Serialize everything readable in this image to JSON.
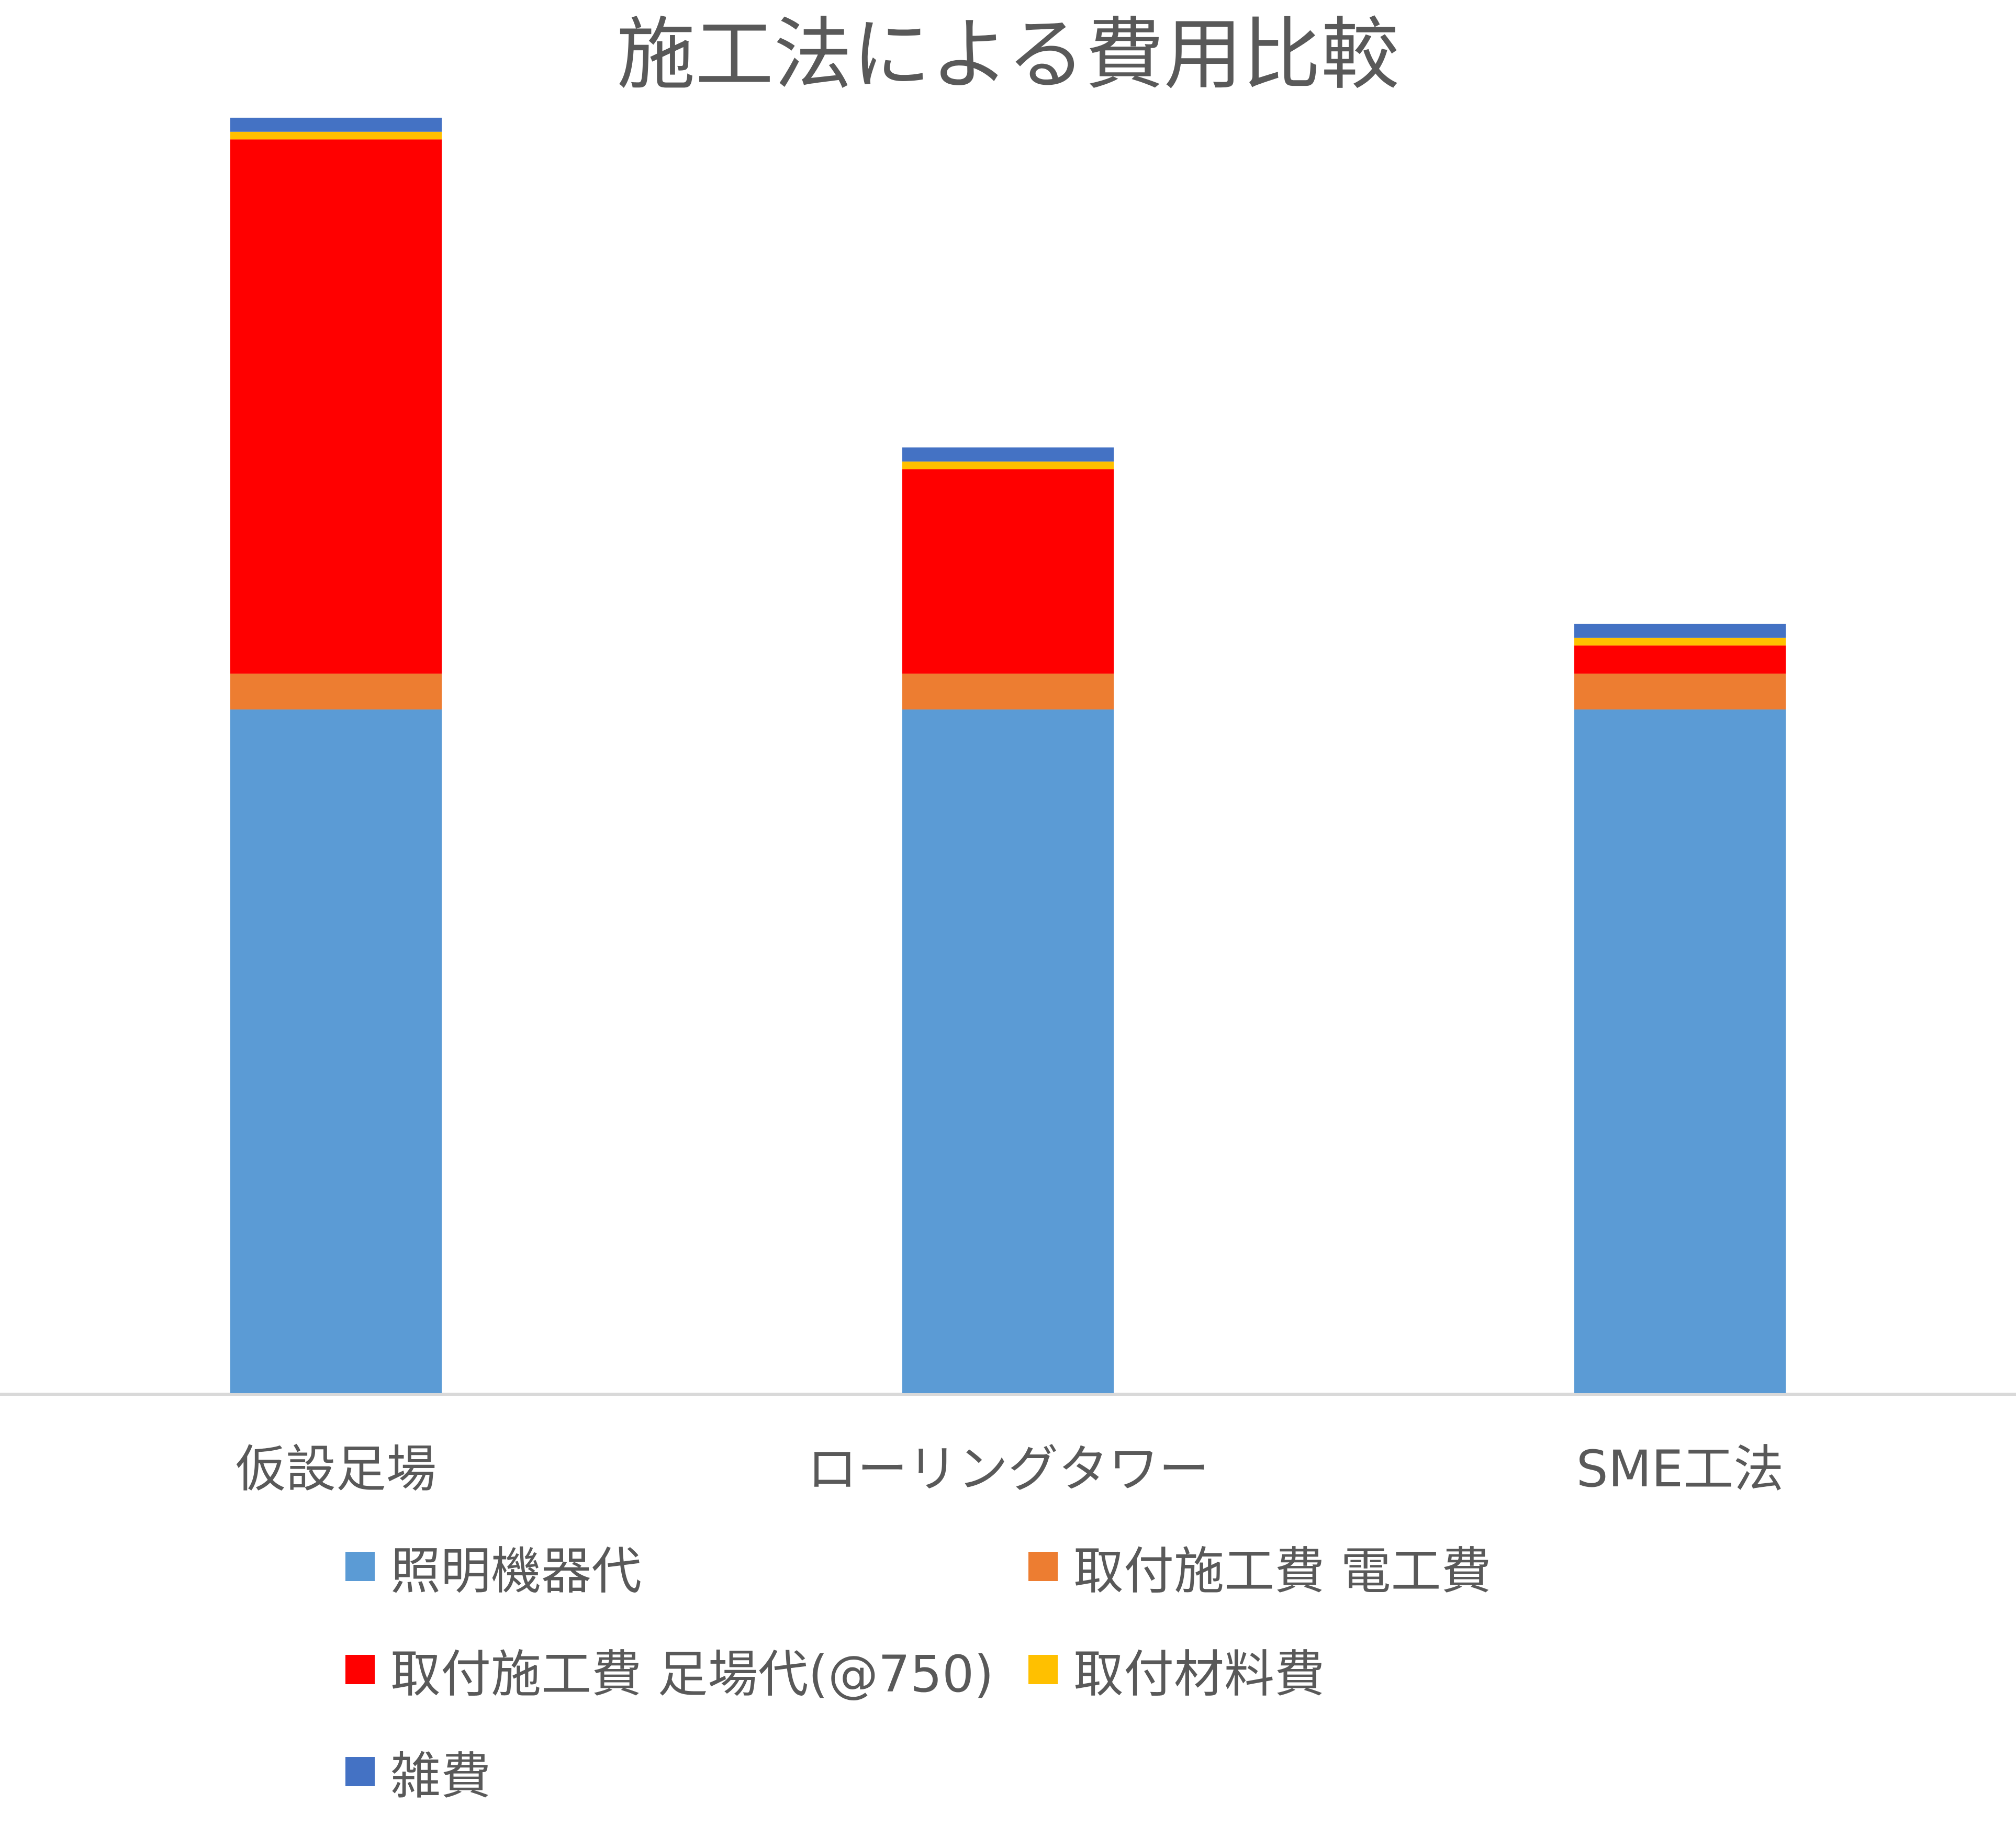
{
  "chart_data": {
    "type": "bar",
    "stacked": true,
    "title": "施工法による費用比較",
    "xlabel": "",
    "ylabel": "",
    "categories": [
      "仮設足場",
      "ローリングタワー",
      "SME工法"
    ],
    "ylim": [
      0,
      1000
    ],
    "grid": false,
    "legend_position": "bottom",
    "series": [
      {
        "name": "照明機器代",
        "color": "#5B9BD5",
        "values": [
          535,
          535,
          535
        ]
      },
      {
        "name": "取付施工費 電工費",
        "color": "#ED7D31",
        "values": [
          28,
          28,
          28
        ]
      },
      {
        "name": "取付施工費 足場代(@750)",
        "color": "#FF0000",
        "values": [
          418,
          160,
          22
        ]
      },
      {
        "name": "取付材料費",
        "color": "#FFC000",
        "values": [
          6,
          6,
          6
        ]
      },
      {
        "name": "雑費",
        "color": "#4472C4",
        "values": [
          11,
          11,
          11
        ]
      }
    ]
  }
}
